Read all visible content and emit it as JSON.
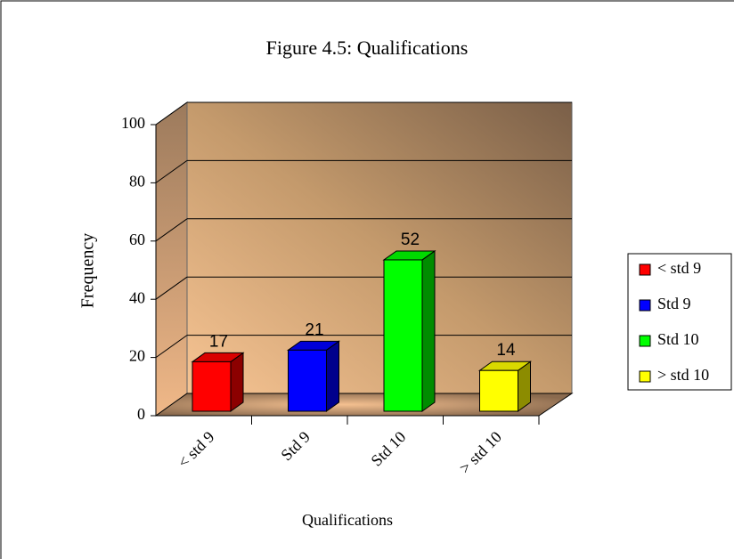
{
  "chart_data": {
    "type": "bar3d",
    "title": "Figure 4.5: Qualifications",
    "y_label": "Frequency",
    "x_label": "Qualifications",
    "categories": [
      "< std 9",
      "Std 9",
      "Std 10",
      "> std 10"
    ],
    "values": [
      17,
      21,
      52,
      14
    ],
    "colors": [
      "#ff0000",
      "#0000ff",
      "#00ff00",
      "#ffff00"
    ],
    "ylim": [
      0,
      100
    ],
    "yticks": [
      0,
      20,
      40,
      60,
      80,
      100
    ],
    "grid": true,
    "legend": "right"
  }
}
